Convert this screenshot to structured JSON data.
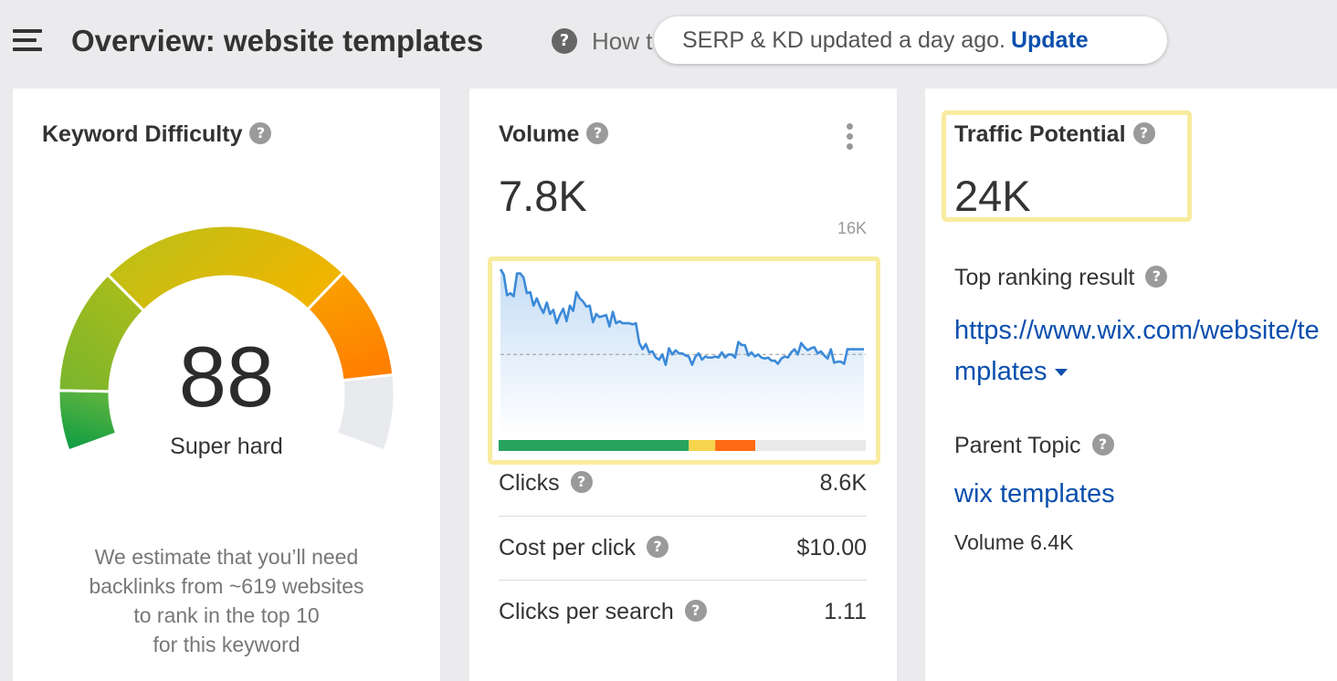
{
  "header": {
    "title": "Overview: website templates",
    "how_text": "How t",
    "toast_text": "SERP & KD updated a day ago.",
    "toast_action": "Update"
  },
  "keyword_difficulty": {
    "title": "Keyword Difficulty",
    "value": "88",
    "label": "Super hard",
    "note_lines": [
      "We estimate that you’ll need",
      "backlinks from ~619 websites",
      "to rank in the top 10",
      "for this keyword"
    ],
    "score": 88,
    "colors": {
      "green": "#1e9e4a",
      "yellow_green": "#b5c21a",
      "yellow": "#efb500",
      "orange": "#ff8000",
      "empty": "#e8eaed"
    }
  },
  "volume": {
    "title": "Volume",
    "value": "7.8K",
    "chart_max_label": "16K",
    "metrics": [
      {
        "label": "Clicks",
        "value": "8.6K"
      },
      {
        "label": "Cost per click",
        "value": "$10.00"
      },
      {
        "label": "Clicks per search",
        "value": "1.11"
      }
    ],
    "clicks_bar": {
      "green_fraction": 0.518,
      "yellow_fraction": 0.072,
      "orange_fraction": 0.109,
      "colors": {
        "green": "#27a35e",
        "yellow": "#f6d44d",
        "orange": "#ff6a13",
        "rest": "#eaeaea"
      }
    }
  },
  "traffic_potential": {
    "title": "Traffic Potential",
    "value": "24K",
    "top_ranking_label": "Top ranking result",
    "top_ranking_url": "https://www.wix.com/website/templates",
    "parent_topic_label": "Parent Topic",
    "parent_topic_link": "wix templates",
    "parent_volume": "Volume 6.4K"
  },
  "chart_data": {
    "type": "area",
    "title": "",
    "ylim": [
      0,
      16000
    ],
    "reference_line": 7800,
    "values": [
      16000,
      15500,
      13500,
      13700,
      13400,
      15600,
      15600,
      15200,
      13700,
      13800,
      12500,
      13200,
      12400,
      11800,
      12800,
      11700,
      12100,
      10800,
      11600,
      12200,
      11000,
      12500,
      12000,
      13800,
      13200,
      12900,
      12400,
      12500,
      10900,
      11700,
      11400,
      11500,
      11600,
      10500,
      11900,
      10800,
      11000,
      10800,
      10800,
      10800,
      10700,
      10800,
      8900,
      8300,
      8800,
      8000,
      8100,
      7500,
      7300,
      7800,
      6800,
      8400,
      7800,
      8200,
      7900,
      7900,
      7700,
      7600,
      6800,
      7600,
      7900,
      7300,
      7600,
      7500,
      7500,
      7600,
      7500,
      8000,
      7500,
      7800,
      7800,
      7500,
      9000,
      8700,
      8700,
      7700,
      8000,
      7600,
      7800,
      7500,
      7400,
      7500,
      7200,
      7200,
      6900,
      7400,
      7600,
      7500,
      8000,
      8300,
      7800,
      8900,
      8500,
      8200,
      8400,
      8500,
      7900,
      8100,
      7700,
      7400,
      8300,
      7000,
      7100,
      7100,
      6900,
      8300,
      8300,
      8300,
      8300,
      8300,
      8300
    ]
  }
}
